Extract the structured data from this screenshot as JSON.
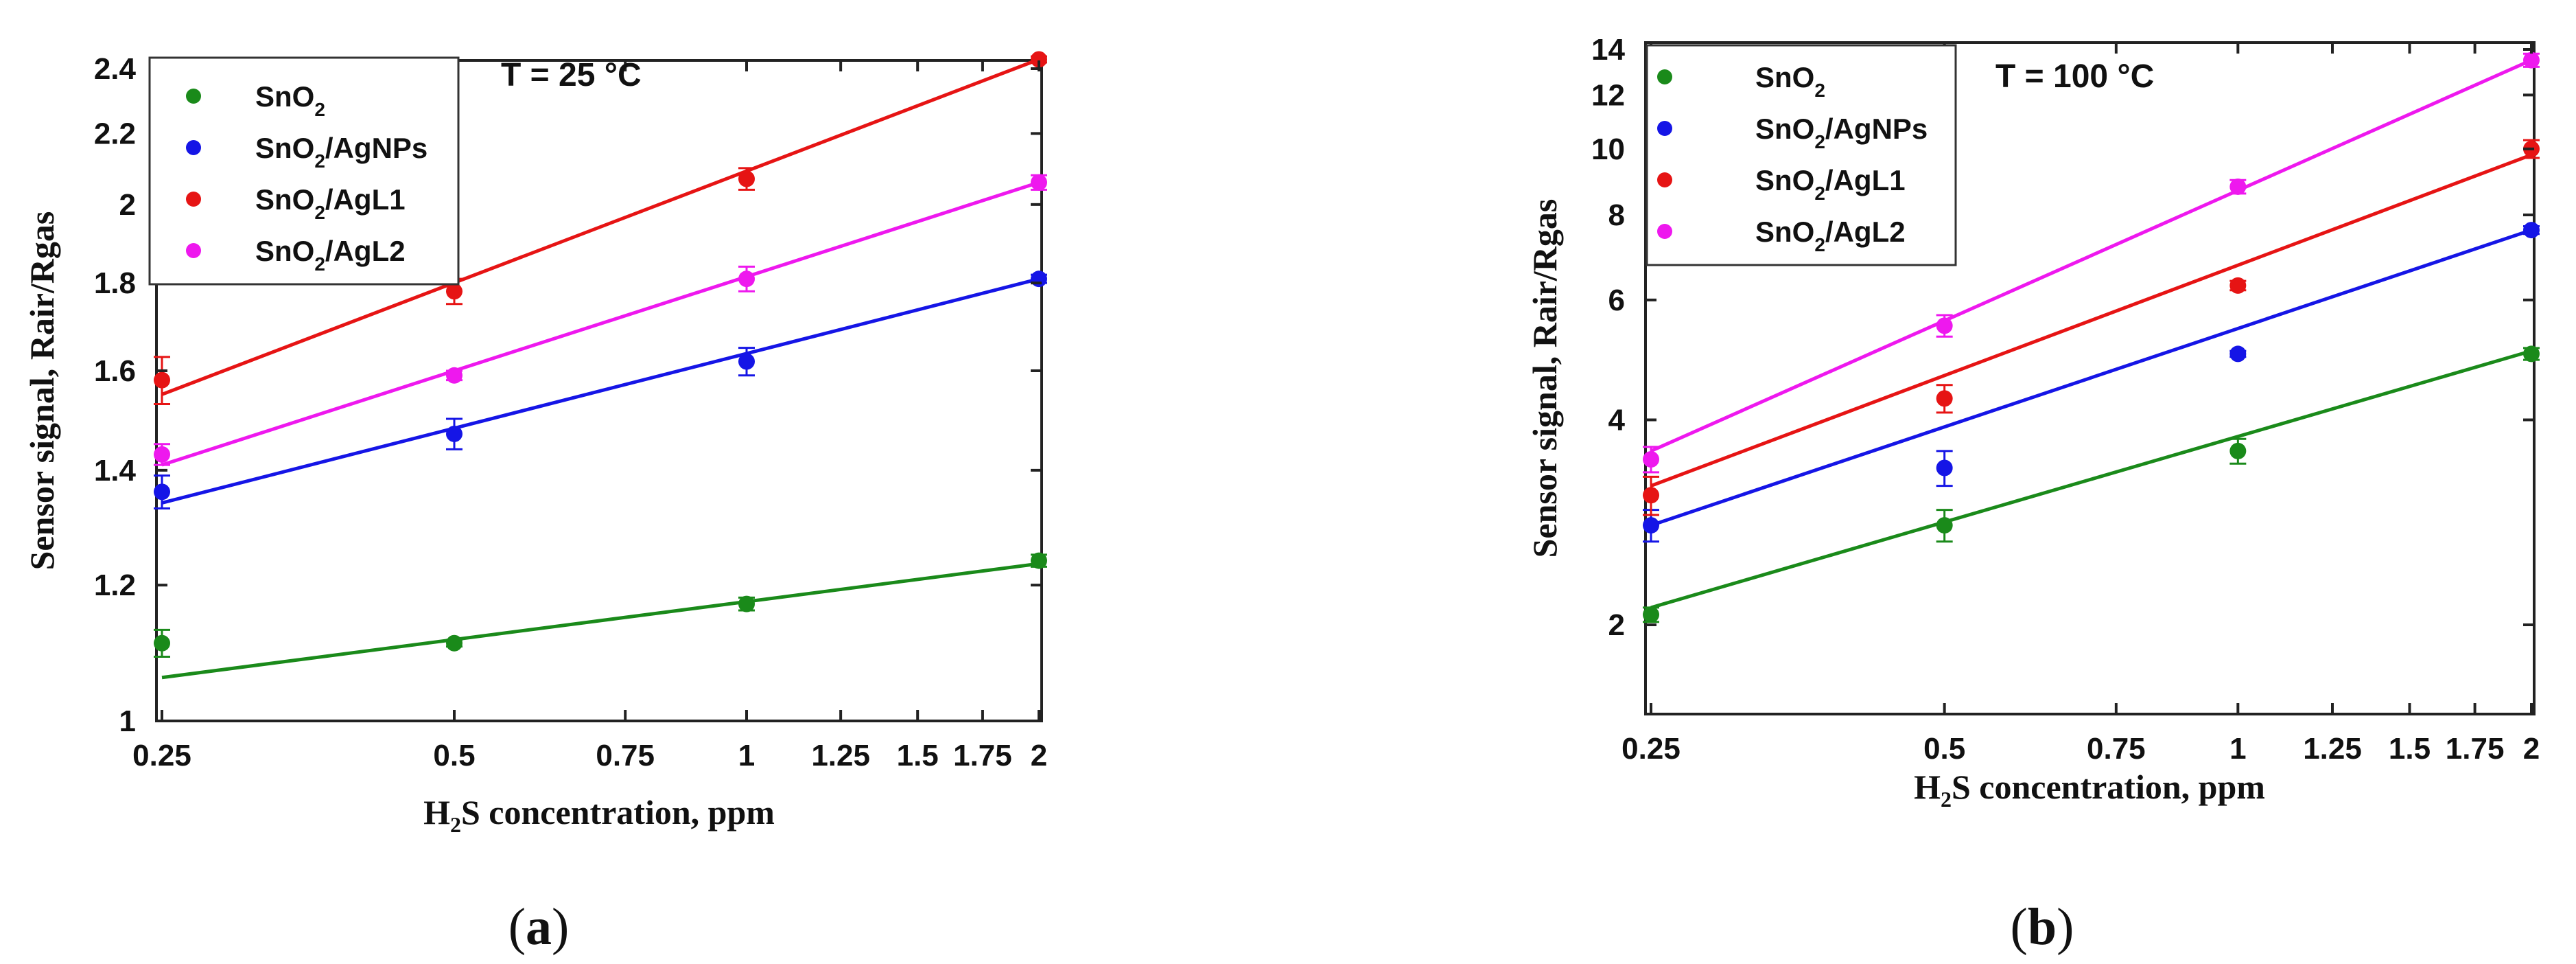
{
  "chart_data": [
    {
      "type": "scatter",
      "panel": "a",
      "annotation": "T = 25 °C",
      "xlabel": "H2S concentration, ppm",
      "ylabel": "Sensor signal, Rair/Rgas",
      "xscale": "log",
      "yscale": "log",
      "xlim": [
        0.24,
        2.0
      ],
      "ylim": [
        1.0,
        2.5
      ],
      "xticks": [
        0.25,
        0.5,
        0.75,
        1,
        1.25,
        1.5,
        1.75,
        2
      ],
      "xtick_labels": [
        "0.25",
        "0.5",
        "0.75",
        "1",
        "1.25",
        "1.5",
        "1.75",
        "2"
      ],
      "yticks": [
        1,
        1.2,
        1.4,
        1.6,
        1.8,
        2,
        2.2,
        2.4
      ],
      "ytick_labels": [
        "1",
        "1.2",
        "1.4",
        "1.6",
        "1.8",
        "2",
        "2.2",
        "2.4"
      ],
      "legend_position": "top-left",
      "series": [
        {
          "name": "SnO2",
          "color": "#1a8a1a",
          "x": [
            0.25,
            0.5,
            1,
            2
          ],
          "values": [
            1.11,
            1.11,
            1.17,
            1.24
          ],
          "errors": [
            0.02,
            0.005,
            0.01,
            0.01
          ],
          "fit": [
            1.06,
            1.235
          ]
        },
        {
          "name": "SnO2/AgNPs",
          "color": "#1515e6",
          "x": [
            0.25,
            0.5,
            1,
            2
          ],
          "values": [
            1.36,
            1.47,
            1.62,
            1.81
          ],
          "errors": [
            0.03,
            0.03,
            0.03,
            0.01
          ],
          "fit": [
            1.34,
            1.81
          ]
        },
        {
          "name": "SnO2/AgL1",
          "color": "#e61414",
          "x": [
            0.25,
            0.5,
            1,
            2
          ],
          "values": [
            1.58,
            1.78,
            2.07,
            2.43
          ],
          "errors": [
            0.05,
            0.03,
            0.03,
            0.01
          ],
          "fit": [
            1.55,
            2.43
          ]
        },
        {
          "name": "SnO2/AgL2",
          "color": "#ee18ee",
          "x": [
            0.25,
            0.5,
            1,
            2
          ],
          "values": [
            1.43,
            1.59,
            1.81,
            2.06
          ],
          "errors": [
            0.02,
            0.01,
            0.03,
            0.02
          ],
          "fit": [
            1.41,
            2.06
          ]
        }
      ]
    },
    {
      "type": "scatter",
      "panel": "b",
      "annotation": "T = 100 °C",
      "xlabel": "H2S concentration, ppm",
      "ylabel": "Sensor signal, Rair/Rgas",
      "xscale": "log",
      "yscale": "log",
      "xlim": [
        0.24,
        2.0
      ],
      "ylim": [
        1.55,
        14.0
      ],
      "xticks": [
        0.25,
        0.5,
        0.75,
        1,
        1.25,
        1.5,
        1.75,
        2
      ],
      "xtick_labels": [
        "0.25",
        "0.5",
        "0.75",
        "1",
        "1.25",
        "1.5",
        "1.75",
        "2"
      ],
      "yticks": [
        2,
        4,
        6,
        8,
        10,
        12,
        14
      ],
      "ytick_labels": [
        "2",
        "4",
        "6",
        "8",
        "10",
        "12",
        "14"
      ],
      "legend_position": "top-left",
      "series": [
        {
          "name": "SnO2",
          "color": "#1a8a1a",
          "x": [
            0.25,
            0.5,
            1,
            2
          ],
          "values": [
            2.07,
            2.8,
            3.6,
            5.0
          ],
          "errors": [
            0.05,
            0.15,
            0.15,
            0.1
          ],
          "fit": [
            2.12,
            5.05
          ]
        },
        {
          "name": "SnO2/AgNPs",
          "color": "#1515e6",
          "x": [
            0.25,
            0.5,
            1,
            2
          ],
          "values": [
            2.8,
            3.4,
            5.0,
            7.6
          ],
          "errors": [
            0.15,
            0.2,
            0.05,
            0.1
          ],
          "fit": [
            2.8,
            7.6
          ]
        },
        {
          "name": "SnO2/AgL1",
          "color": "#e61414",
          "x": [
            0.25,
            0.5,
            1,
            2
          ],
          "values": [
            3.1,
            4.3,
            6.3,
            10.0
          ],
          "errors": [
            0.2,
            0.2,
            0.1,
            0.3
          ],
          "fit": [
            3.2,
            9.8
          ]
        },
        {
          "name": "SnO2/AgL2",
          "color": "#ee18ee",
          "x": [
            0.25,
            0.5,
            1,
            2
          ],
          "values": [
            3.5,
            5.5,
            8.8,
            13.5
          ],
          "errors": [
            0.15,
            0.2,
            0.2,
            0.3
          ],
          "fit": [
            3.6,
            13.5
          ]
        }
      ]
    }
  ]
}
